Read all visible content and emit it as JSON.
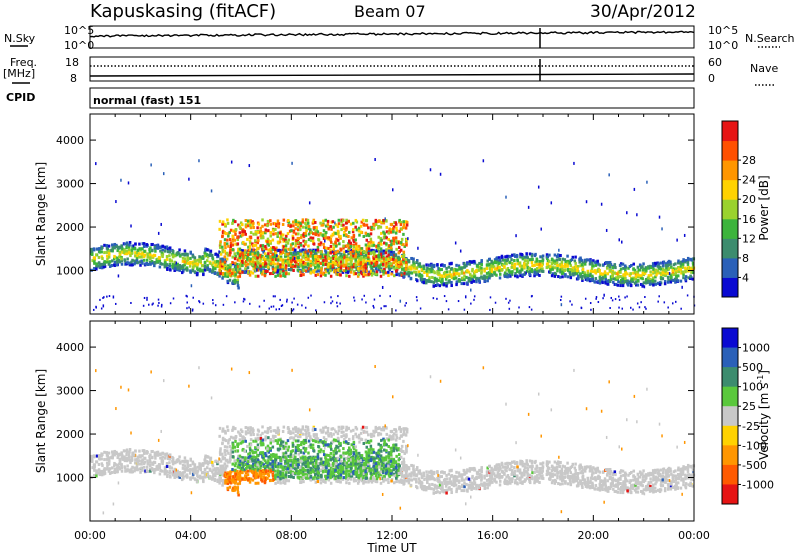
{
  "header": {
    "station": "Kapuskasing (fitACF)",
    "beam": "Beam 07",
    "date": "30/Apr/2012"
  },
  "strips": {
    "nsky_label": "N.Sky",
    "nsky_ticks": [
      "10^5",
      "10^0"
    ],
    "nsearch_label": "N.Search",
    "freq_label": "Freq.",
    "freq_unit": "[MHz]",
    "freq_ticks": [
      "18",
      "8"
    ],
    "nave_label": "Nave",
    "nave_ticks": [
      "60",
      "0"
    ],
    "cpid_label": "CPID",
    "cpid_value": "normal (fast) 151"
  },
  "chart_data": [
    {
      "type": "heatmap",
      "panel": "power",
      "ylabel": "Slant Range [km]",
      "y_ticks": [
        "1000",
        "2000",
        "3000",
        "4000"
      ],
      "ylim": [
        0,
        4600
      ],
      "colorbar_label": "Power [dB]",
      "colorbar_ticks": [
        "4",
        "8",
        "12",
        "16",
        "20",
        "24",
        "28"
      ],
      "colorbar_colors": [
        "#0a0ad2",
        "#2a60b8",
        "#3c8c6e",
        "#3cb43c",
        "#9ad22e",
        "#ffd200",
        "#ff9600",
        "#ff5000",
        "#e61414"
      ]
    },
    {
      "type": "heatmap",
      "panel": "velocity",
      "ylabel": "Slant Range [km]",
      "y_ticks": [
        "1000",
        "2000",
        "3000",
        "4000"
      ],
      "ylim": [
        0,
        4600
      ],
      "colorbar_label": "Velocity [m s",
      "colorbar_label_sup": "-1",
      "colorbar_label_tail": "]",
      "colorbar_ticks": [
        "-1000",
        "-500",
        "-100",
        "-25",
        "25",
        "100",
        "500",
        "1000"
      ],
      "colorbar_colors": [
        "#e61414",
        "#ff5a00",
        "#ff9600",
        "#ffd200",
        "#c8c8c8",
        "#5ac83c",
        "#3c8c6e",
        "#2a60b8",
        "#0a0ad2"
      ]
    }
  ],
  "time_axis": {
    "xlabel": "Time UT",
    "ticks": [
      "00:00",
      "04:00",
      "08:00",
      "12:00",
      "16:00",
      "20:00",
      "00:00"
    ]
  }
}
